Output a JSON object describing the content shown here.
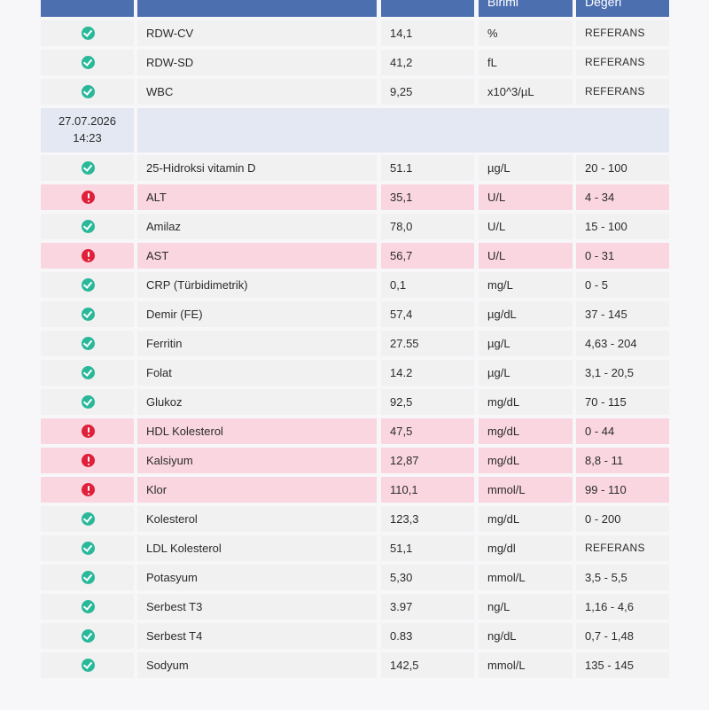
{
  "header": {
    "col_value": "",
    "col_unit": "Birimi",
    "col_reference": "Değeri"
  },
  "top_rows": [
    {
      "status": "ok",
      "test": "RDW-CV",
      "value": "14,1",
      "unit": "%",
      "reference": "REFERANS"
    },
    {
      "status": "ok",
      "test": "RDW-SD",
      "value": "41,2",
      "unit": "fL",
      "reference": "REFERANS"
    },
    {
      "status": "ok",
      "test": "WBC",
      "value": "9,25",
      "unit": "x10^3/µL",
      "reference": "REFERANS"
    }
  ],
  "section": {
    "date": "27.07.2026",
    "time": "14:23"
  },
  "rows": [
    {
      "status": "ok",
      "test": "25-Hidroksi vitamin D",
      "value": "51.1",
      "unit": "µg/L",
      "reference": "20 - 100"
    },
    {
      "status": "alert",
      "test": "ALT",
      "value": "35,1",
      "unit": "U/L",
      "reference": "4 - 34"
    },
    {
      "status": "ok",
      "test": "Amilaz",
      "value": "78,0",
      "unit": "U/L",
      "reference": "15 - 100"
    },
    {
      "status": "alert",
      "test": "AST",
      "value": "56,7",
      "unit": "U/L",
      "reference": "0 - 31"
    },
    {
      "status": "ok",
      "test": "CRP (Türbidimetrik)",
      "value": "0,1",
      "unit": "mg/L",
      "reference": "0 - 5"
    },
    {
      "status": "ok",
      "test": "Demir (FE)",
      "value": "57,4",
      "unit": "µg/dL",
      "reference": "37 - 145"
    },
    {
      "status": "ok",
      "test": "Ferritin",
      "value": "27.55",
      "unit": "µg/L",
      "reference": "4,63 - 204"
    },
    {
      "status": "ok",
      "test": "Folat",
      "value": "14.2",
      "unit": "µg/L",
      "reference": "3,1 - 20,5"
    },
    {
      "status": "ok",
      "test": "Glukoz",
      "value": "92,5",
      "unit": "mg/dL",
      "reference": "70 - 115"
    },
    {
      "status": "alert",
      "test": "HDL Kolesterol",
      "value": "47,5",
      "unit": "mg/dL",
      "reference": "0 - 44"
    },
    {
      "status": "alert",
      "test": "Kalsiyum",
      "value": "12,87",
      "unit": "mg/dL",
      "reference": "8,8 - 11"
    },
    {
      "status": "alert",
      "test": "Klor",
      "value": "110,1",
      "unit": "mmol/L",
      "reference": "99 - 110"
    },
    {
      "status": "ok",
      "test": "Kolesterol",
      "value": "123,3",
      "unit": "mg/dL",
      "reference": "0 - 200"
    },
    {
      "status": "ok",
      "test": "LDL Kolesterol",
      "value": "51,1",
      "unit": "mg/dl",
      "reference": "REFERANS"
    },
    {
      "status": "ok",
      "test": "Potasyum",
      "value": "5,30",
      "unit": "mmol/L",
      "reference": "3,5 - 5,5"
    },
    {
      "status": "ok",
      "test": "Serbest T3",
      "value": "3.97",
      "unit": "ng/L",
      "reference": "1,16 - 4,6"
    },
    {
      "status": "ok",
      "test": "Serbest T4",
      "value": "0.83",
      "unit": "ng/dL",
      "reference": "0,7 - 1,48"
    },
    {
      "status": "ok",
      "test": "Sodyum",
      "value": "142,5",
      "unit": "mmol/L",
      "reference": "135 - 145"
    }
  ],
  "icons": {
    "ok": "check-circle-icon",
    "alert": "exclamation-circle-icon"
  },
  "colors": {
    "header_bg": "#4c6fb0",
    "ok_icon": "#2ab89a",
    "alert_icon": "#e0203a",
    "alert_row_bg": "#fad6e0",
    "date_row_bg": "#e4e8f2"
  }
}
